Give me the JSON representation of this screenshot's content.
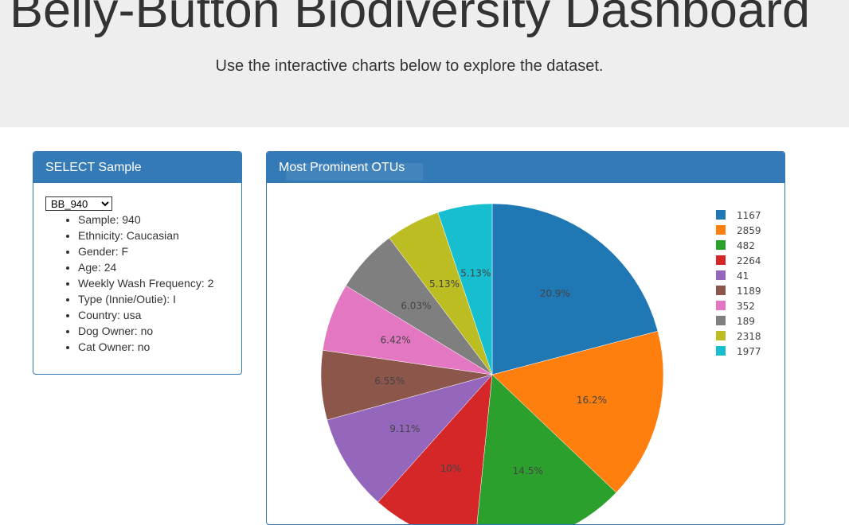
{
  "header": {
    "title": "Belly-Button Biodiversity Dashboard",
    "subtitle": "Use the interactive charts below to explore the dataset."
  },
  "select_panel": {
    "title": "SELECT Sample",
    "selected_sample": "BB_940",
    "metadata": [
      "Sample: 940",
      "Ethnicity: Caucasian",
      "Gender: F",
      "Age: 24",
      "Weekly Wash Frequency: 2",
      "Type (Innie/Outie): I",
      "Country: usa",
      "Dog Owner: no",
      "Cat Owner: no"
    ]
  },
  "chart_panel": {
    "title": "Most Prominent OTUs"
  },
  "chart_data": {
    "type": "pie",
    "title": "Most Prominent OTUs",
    "labels": [
      "1167",
      "2859",
      "482",
      "2264",
      "41",
      "1189",
      "352",
      "189",
      "2318",
      "1977"
    ],
    "values": [
      20.9,
      16.2,
      14.5,
      10.0,
      9.11,
      6.55,
      6.42,
      6.03,
      5.13,
      5.13
    ],
    "value_labels": [
      "20.9%",
      "16.2%",
      "14.5%",
      "10%",
      "9.11%",
      "6.55%",
      "6.42%",
      "6.03%",
      "5.13%",
      "5.13%"
    ],
    "colors": [
      "#1f77b4",
      "#ff7f0e",
      "#2ca02c",
      "#d62728",
      "#9467bd",
      "#8c564b",
      "#e377c2",
      "#7f7f7f",
      "#bcbd22",
      "#17becf"
    ],
    "direction": "clockwise",
    "legend_position": "top-right"
  }
}
